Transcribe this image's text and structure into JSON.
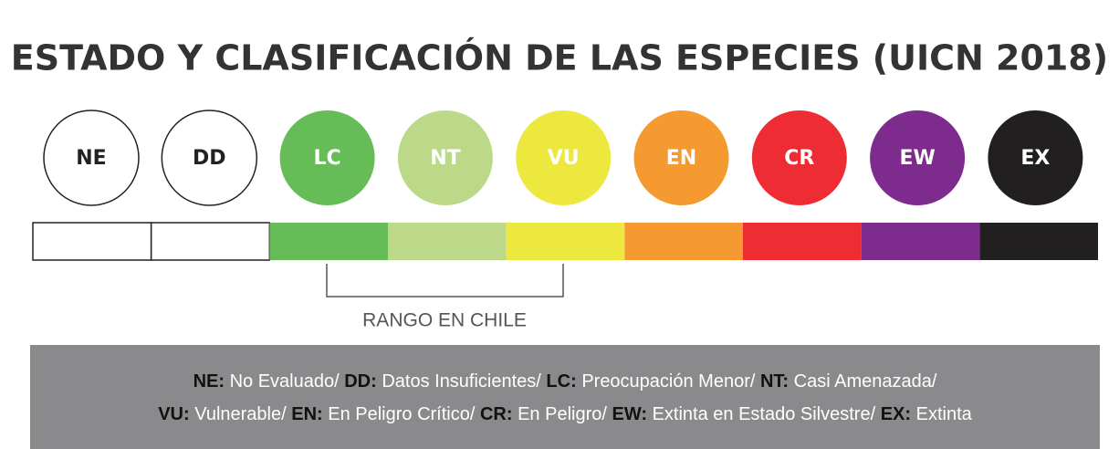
{
  "title": "ESTADO Y CLASIFICACIÓN DE LAS ESPECIES (UICN 2018)",
  "categories": [
    {
      "code": "NE",
      "color": "#ffffff"
    },
    {
      "code": "DD",
      "color": "#ffffff"
    },
    {
      "code": "LC",
      "color": "#66bd58"
    },
    {
      "code": "NT",
      "color": "#bcd98a"
    },
    {
      "code": "VU",
      "color": "#ece83d"
    },
    {
      "code": "EN",
      "color": "#f59a31"
    },
    {
      "code": "CR",
      "color": "#ee2c33"
    },
    {
      "code": "EW",
      "color": "#7d2b8c"
    },
    {
      "code": "EX",
      "color": "#221f20"
    }
  ],
  "range_label": "RANGO EN CHILE",
  "legend": {
    "lines": [
      [
        {
          "code": "NE:",
          "text": "No Evaluado/"
        },
        {
          "code": "DD:",
          "text": "Datos Insuficientes/"
        },
        {
          "code": "LC:",
          "text": "Preocupación Menor/"
        },
        {
          "code": "NT:",
          "text": "Casi Amenazada/"
        }
      ],
      [
        {
          "code": "VU:",
          "text": "Vulnerable/"
        },
        {
          "code": "EN:",
          "text": "En Peligro Crítico/"
        },
        {
          "code": "CR:",
          "text": "En Peligro/"
        },
        {
          "code": "EW:",
          "text": "Extinta en Estado Silvestre/"
        },
        {
          "code": "EX:",
          "text": "Extinta"
        }
      ]
    ]
  }
}
